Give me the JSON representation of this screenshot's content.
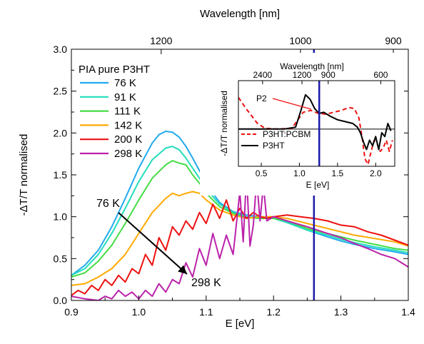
{
  "chart_data": [
    {
      "type": "line",
      "xlabel": "E  [eV]",
      "ylabel": "-ΔT/T normalised",
      "x2label": "Wavelength [nm]",
      "xlim": [
        0.9,
        1.4
      ],
      "ylim": [
        0,
        3.0
      ],
      "xticks": [
        "0.9",
        "1.0",
        "1.1",
        "1.2",
        "1.3",
        "1.4"
      ],
      "yticks": [
        "0.0",
        "0.5",
        "1.0",
        "1.5",
        "2.0",
        "2.5",
        "3.0"
      ],
      "x2ticks": [
        {
          "label": "1200",
          "energy": 1.0333
        },
        {
          "label": "1000",
          "energy": 1.24
        },
        {
          "label": "900",
          "energy": 1.3778
        }
      ],
      "vline_x": 1.26,
      "legend_title": "PIA pure P3HT",
      "legend_position": "top-left",
      "annotation": {
        "from_label": "76 K",
        "to_label": "298 K",
        "from": [
          0.985,
          0.88
        ],
        "to": [
          1.08,
          0.28
        ]
      },
      "series": [
        {
          "name": "76 K",
          "color": "#22aaee",
          "x": [
            0.9,
            0.92,
            0.94,
            0.96,
            0.98,
            1.0,
            1.02,
            1.03,
            1.04,
            1.05,
            1.06,
            1.07,
            1.08,
            1.09,
            1.1,
            1.11,
            1.12,
            1.14,
            1.16,
            1.18,
            1.2,
            1.22,
            1.25,
            1.28,
            1.3,
            1.32,
            1.35,
            1.38,
            1.4
          ],
          "y": [
            0.3,
            0.42,
            0.6,
            0.88,
            1.22,
            1.58,
            1.88,
            1.98,
            2.02,
            2.01,
            1.95,
            1.84,
            1.7,
            1.55,
            1.4,
            1.28,
            1.17,
            1.06,
            1.02,
            1.0,
            1.0,
            0.94,
            0.84,
            0.76,
            0.71,
            0.67,
            0.62,
            0.58,
            0.55
          ]
        },
        {
          "name": "91 K",
          "color": "#22ddbb",
          "x": [
            0.9,
            0.92,
            0.94,
            0.96,
            0.98,
            1.0,
            1.02,
            1.04,
            1.05,
            1.06,
            1.07,
            1.08,
            1.09,
            1.1,
            1.12,
            1.14,
            1.16,
            1.18,
            1.2,
            1.22,
            1.25,
            1.28,
            1.3,
            1.32,
            1.35,
            1.38,
            1.4
          ],
          "y": [
            0.3,
            0.38,
            0.55,
            0.8,
            1.1,
            1.42,
            1.68,
            1.82,
            1.84,
            1.8,
            1.7,
            1.58,
            1.46,
            1.33,
            1.15,
            1.05,
            1.0,
            0.98,
            0.98,
            0.93,
            0.84,
            0.78,
            0.73,
            0.69,
            0.64,
            0.6,
            0.57
          ]
        },
        {
          "name": "111 K",
          "color": "#44dd44",
          "x": [
            0.9,
            0.92,
            0.94,
            0.96,
            0.98,
            1.0,
            1.02,
            1.04,
            1.05,
            1.06,
            1.07,
            1.08,
            1.09,
            1.1,
            1.12,
            1.14,
            1.16,
            1.18,
            1.2,
            1.22,
            1.25,
            1.28,
            1.3,
            1.32,
            1.35,
            1.38,
            1.4
          ],
          "y": [
            0.28,
            0.33,
            0.47,
            0.66,
            0.92,
            1.2,
            1.46,
            1.62,
            1.67,
            1.64,
            1.62,
            1.5,
            1.4,
            1.28,
            1.12,
            1.04,
            0.99,
            0.98,
            0.98,
            0.95,
            0.86,
            0.8,
            0.76,
            0.72,
            0.67,
            0.62,
            0.6
          ]
        },
        {
          "name": "142 K",
          "color": "#ffaa00",
          "x": [
            0.9,
            0.92,
            0.94,
            0.96,
            0.98,
            1.0,
            1.02,
            1.04,
            1.05,
            1.06,
            1.07,
            1.08,
            1.09,
            1.1,
            1.12,
            1.14,
            1.16,
            1.18,
            1.2,
            1.22,
            1.25,
            1.28,
            1.3,
            1.32,
            1.35,
            1.38,
            1.4
          ],
          "y": [
            0.18,
            0.2,
            0.28,
            0.38,
            0.55,
            0.8,
            1.05,
            1.22,
            1.28,
            1.25,
            1.28,
            1.3,
            1.28,
            1.2,
            1.08,
            1.02,
            0.98,
            1.0,
            1.0,
            0.98,
            0.92,
            0.86,
            0.82,
            0.78,
            0.74,
            0.7,
            0.65
          ]
        },
        {
          "name": "200 K",
          "color": "#ee1111",
          "x": [
            0.9,
            0.91,
            0.92,
            0.93,
            0.94,
            0.95,
            0.96,
            0.97,
            0.98,
            0.99,
            1.0,
            1.01,
            1.02,
            1.03,
            1.04,
            1.05,
            1.06,
            1.07,
            1.08,
            1.09,
            1.1,
            1.11,
            1.12,
            1.13,
            1.14,
            1.15,
            1.16,
            1.17,
            1.18,
            1.19,
            1.2,
            1.22,
            1.24,
            1.26,
            1.28,
            1.3,
            1.32,
            1.34,
            1.36,
            1.38,
            1.4
          ],
          "y": [
            0.06,
            0.12,
            0.08,
            0.18,
            0.12,
            0.25,
            0.18,
            0.3,
            0.22,
            0.38,
            0.32,
            0.55,
            0.42,
            0.75,
            0.6,
            0.88,
            0.78,
            0.95,
            0.85,
            1.05,
            0.92,
            1.15,
            0.98,
            1.2,
            0.95,
            1.1,
            0.98,
            1.05,
            1.0,
            0.98,
            1.0,
            1.02,
            1.0,
            0.98,
            0.95,
            0.9,
            0.88,
            0.82,
            0.78,
            0.72,
            0.66
          ]
        },
        {
          "name": "298 K",
          "color": "#bb22aa",
          "x": [
            0.9,
            0.92,
            0.94,
            0.95,
            0.96,
            0.97,
            0.98,
            0.99,
            1.0,
            1.01,
            1.02,
            1.03,
            1.04,
            1.05,
            1.06,
            1.07,
            1.08,
            1.09,
            1.1,
            1.11,
            1.12,
            1.13,
            1.14,
            1.15,
            1.155,
            1.16,
            1.165,
            1.17,
            1.175,
            1.18,
            1.185,
            1.19,
            1.2,
            1.22,
            1.25,
            1.28,
            1.3,
            1.32,
            1.34,
            1.36,
            1.38,
            1.4
          ],
          "y": [
            0.05,
            0.02,
            0.0,
            0.05,
            0.02,
            0.12,
            0.05,
            0.1,
            0.02,
            0.12,
            0.05,
            0.2,
            0.1,
            0.25,
            0.2,
            0.45,
            0.28,
            0.62,
            0.42,
            0.8,
            0.5,
            0.78,
            0.55,
            1.3,
            0.7,
            1.5,
            0.65,
            0.9,
            1.45,
            0.95,
            1.38,
            0.95,
            1.0,
            0.95,
            0.88,
            0.8,
            0.75,
            0.68,
            0.62,
            0.55,
            0.5,
            0.4
          ]
        }
      ]
    },
    {
      "type": "line",
      "xlabel": "E [eV]",
      "ylabel": "-ΔT/T normalised",
      "x2label": "Wavelength  [nm]",
      "xlim": [
        0.2,
        2.25
      ],
      "ylim": [
        -1.0,
        1.3
      ],
      "xticks": [
        "0.5",
        "1.0",
        "1.5",
        "2.0"
      ],
      "x2ticks": [
        {
          "label": "2400",
          "energy": 0.5167
        },
        {
          "label": "1200",
          "energy": 1.0333
        },
        {
          "label": "900",
          "energy": 1.3778
        },
        {
          "label": "600",
          "energy": 2.0667
        }
      ],
      "vline_x": 1.26,
      "zero_line": true,
      "annotation": {
        "label": "P2"
      },
      "legend_position": "bottom-left",
      "series": [
        {
          "name": "P3HT:PCBM",
          "color": "#ee1111",
          "dashed": true,
          "x": [
            0.2,
            0.3,
            0.45,
            0.55,
            0.7,
            0.9,
            1.05,
            1.15,
            1.25,
            1.35,
            1.45,
            1.55,
            1.65,
            1.72,
            1.78,
            1.82,
            1.86,
            1.9,
            1.94,
            1.98,
            2.02,
            2.06,
            2.1,
            2.14,
            2.18,
            2.22
          ],
          "y": [
            0.85,
            0.55,
            0.15,
            0.02,
            0.0,
            0.02,
            0.45,
            0.5,
            0.42,
            0.4,
            0.45,
            0.5,
            0.58,
            0.55,
            0.3,
            -0.2,
            -0.8,
            -0.95,
            -0.6,
            -0.3,
            -0.4,
            -0.6,
            -0.5,
            -0.3,
            -0.6,
            -0.3
          ]
        },
        {
          "name": "P3HT",
          "color": "#000000",
          "dashed": false,
          "x": [
            0.2,
            0.5,
            0.8,
            0.95,
            1.02,
            1.08,
            1.14,
            1.2,
            1.26,
            1.32,
            1.4,
            1.5,
            1.6,
            1.7,
            1.76,
            1.8,
            1.84,
            1.88,
            1.92,
            1.96,
            2.0,
            2.04,
            2.08,
            2.12,
            2.16,
            2.2
          ],
          "y": [
            0.0,
            0.0,
            0.0,
            0.05,
            0.5,
            0.92,
            0.8,
            0.55,
            0.42,
            0.45,
            0.35,
            0.25,
            0.2,
            0.15,
            0.05,
            -0.1,
            -0.35,
            -0.55,
            -0.3,
            -0.45,
            -0.2,
            -0.55,
            -0.1,
            -0.2,
            0.15,
            -0.05
          ]
        }
      ]
    }
  ]
}
